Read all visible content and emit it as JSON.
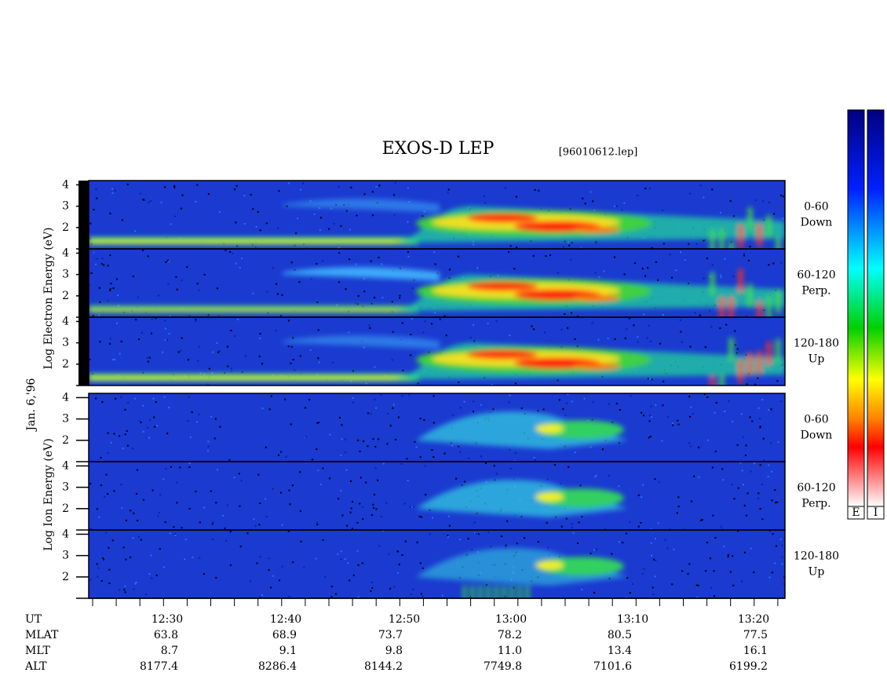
{
  "title": "EXOS-D LEP",
  "file": "[96010612.lep]",
  "date": "Jan. 6,'96",
  "electron": {
    "ylabel": "Log Electron Energy (eV)",
    "ylim": [
      1,
      4.2
    ],
    "yticks": [
      4,
      3,
      2
    ],
    "panels": [
      {
        "range": "0-60",
        "direction": "Down"
      },
      {
        "range": "60-120",
        "direction": "Perp."
      },
      {
        "range": "120-180",
        "direction": "Up"
      }
    ]
  },
  "ion": {
    "ylabel": "Log Ion Energy (eV)",
    "ylim": [
      1,
      4.2
    ],
    "yticks": [
      4,
      3,
      2
    ],
    "panels": [
      {
        "range": "0-60",
        "direction": "Down"
      },
      {
        "range": "60-120",
        "direction": "Perp."
      },
      {
        "range": "120-180",
        "direction": "Up"
      }
    ]
  },
  "ephemeris": [
    {
      "label": "UT",
      "values": [
        "12:30",
        "12:40",
        "12:50",
        "13:00",
        "13:10",
        "13:20"
      ]
    },
    {
      "label": "MLAT",
      "values": [
        "63.8",
        "68.9",
        "73.7",
        "78.2",
        "80.5",
        "77.5"
      ]
    },
    {
      "label": "MLT",
      "values": [
        "8.7",
        "9.1",
        "9.8",
        "11.0",
        "13.4",
        "16.1"
      ]
    },
    {
      "label": "ALT",
      "values": [
        "8177.4",
        "8286.4",
        "8144.2",
        "7749.8",
        "7101.6",
        "6199.2"
      ]
    }
  ],
  "colorbar": [
    "E",
    "I"
  ]
}
